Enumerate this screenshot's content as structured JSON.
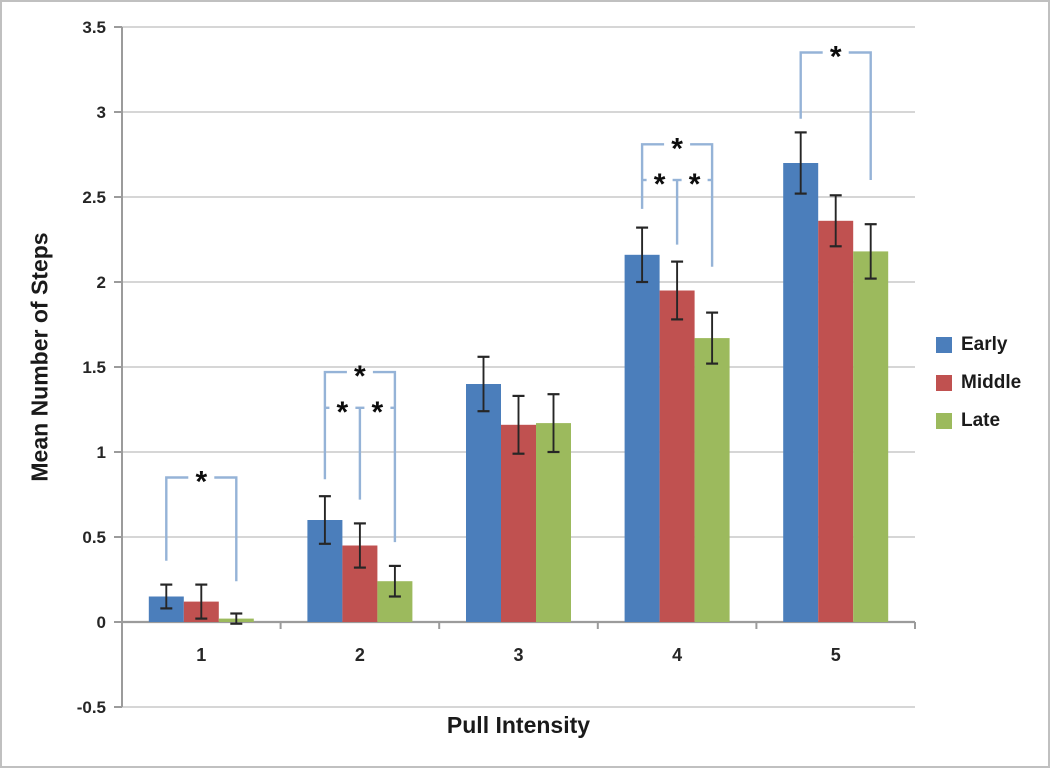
{
  "chart_data": {
    "type": "bar",
    "title": "",
    "xlabel": "Pull Intensity",
    "ylabel": "Mean Number of Steps",
    "categories": [
      "1",
      "2",
      "3",
      "4",
      "5"
    ],
    "ylim": [
      -0.5,
      3.5
    ],
    "yticks": [
      3.5,
      3,
      2.5,
      2,
      1.5,
      1,
      0.5,
      0,
      -0.5
    ],
    "ytick_labels": [
      "3.5",
      "3",
      "2.5",
      "2",
      "1.5",
      "1",
      "0.5",
      "0",
      "-0.5"
    ],
    "grid": true,
    "legend_position": "right",
    "error_bars": true,
    "series": [
      {
        "name": "Early",
        "color": "#4b7ebb",
        "values": [
          0.15,
          0.6,
          1.4,
          2.16,
          2.7
        ],
        "errors": [
          0.07,
          0.14,
          0.16,
          0.16,
          0.18
        ]
      },
      {
        "name": "Middle",
        "color": "#c05150",
        "values": [
          0.12,
          0.45,
          1.16,
          1.95,
          2.36
        ],
        "errors": [
          0.1,
          0.13,
          0.17,
          0.17,
          0.15
        ]
      },
      {
        "name": "Late",
        "color": "#9cba5d",
        "values": [
          0.02,
          0.24,
          1.17,
          1.67,
          2.18
        ],
        "errors": [
          0.03,
          0.09,
          0.17,
          0.15,
          0.16
        ]
      }
    ],
    "significance": [
      {
        "category": "1",
        "style": "single",
        "label": "*",
        "between": [
          "Early",
          "Late"
        ],
        "bar_y": 0.85,
        "left_drop_to": 0.36,
        "right_drop_to": 0.24
      },
      {
        "category": "2",
        "style": "nested",
        "outer": {
          "label": "*",
          "between": [
            "Early",
            "Late"
          ],
          "bar_y": 1.47,
          "left_drop_to": 0.84,
          "right_drop_to": 0.47
        },
        "inner": {
          "bar_y": 1.26,
          "middle_series": "Middle",
          "middle_drop_to": 0.72,
          "left_label": "*",
          "right_label": "*"
        }
      },
      {
        "category": "4",
        "style": "nested",
        "outer": {
          "label": "*",
          "between": [
            "Early",
            "Late"
          ],
          "bar_y": 2.81,
          "left_drop_to": 2.43,
          "right_drop_to": 2.09
        },
        "inner": {
          "bar_y": 2.6,
          "middle_series": "Middle",
          "middle_drop_to": 2.22,
          "left_label": "*",
          "right_label": "*"
        }
      },
      {
        "category": "5",
        "style": "single",
        "label": "*",
        "between": [
          "Early",
          "Late"
        ],
        "bar_y": 3.35,
        "left_drop_to": 2.96,
        "right_drop_to": 2.6
      }
    ]
  },
  "palette": {
    "gridline": "#c9c9c9",
    "axis": "#9b9b9b",
    "bracket": "#95b3d7",
    "error_bar": "#262626",
    "star": "#0d0d0d",
    "tick_text": "#262626",
    "frame_border": "#c0c0c0",
    "background": "#ffffff"
  }
}
